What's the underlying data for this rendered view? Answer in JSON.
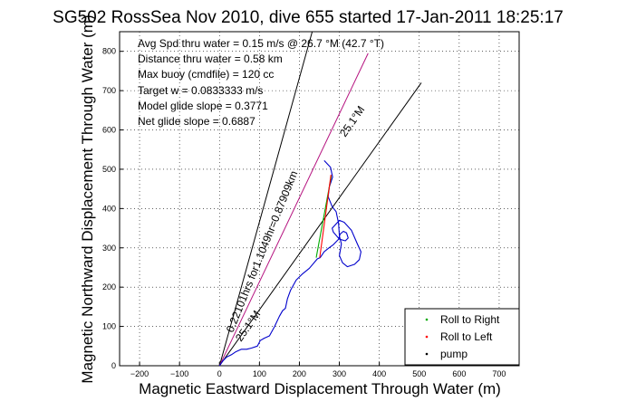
{
  "chart_data": {
    "type": "line",
    "title": "SG502 RossSea Nov 2010, dive 655 started 17-Jan-2011 18:25:17",
    "xlabel": "Magnetic Eastward Displacement Through Water (m)",
    "ylabel": "Magnetic Northward Displacement Through Water (m)",
    "xlim": [
      -250,
      750
    ],
    "ylim": [
      0,
      850
    ],
    "xticks": [
      "−200",
      "−100",
      "0",
      "100",
      "200",
      "300",
      "400",
      "500",
      "600",
      "700"
    ],
    "yticks": [
      "0",
      "100",
      "200",
      "300",
      "400",
      "500",
      "600",
      "700",
      "800"
    ],
    "grid": true,
    "annotations": [
      "Avg Spd thru water =  0.15 m/s @  26.7   °M (42.7 °T)",
      "Distance thru water =  0.58 km",
      "Max buoy (cmdfile) = 120 cc",
      "Target w = 0.0833333 m/s",
      "Model glide slope = 0.3771",
      "Net glide slope = 0.6887"
    ],
    "line_labels": {
      "bearing_lower": "25.1°M",
      "bearing_upper": "25.1°M",
      "steep_line": "0.22101hrs for1.1049hr=0.87909km"
    },
    "reference_lines": [
      {
        "color": "#000000",
        "points": [
          [
            0,
            0
          ],
          [
            505,
            720
          ]
        ]
      },
      {
        "color": "#000000",
        "points": [
          [
            0,
            0
          ],
          [
            232,
            850
          ]
        ]
      },
      {
        "color": "#b5127f",
        "points": [
          [
            0,
            0
          ],
          [
            372,
            795
          ]
        ]
      }
    ],
    "series": [
      {
        "color": "#0000cc",
        "points": [
          [
            0,
            0
          ],
          [
            8,
            12
          ],
          [
            18,
            22
          ],
          [
            30,
            28
          ],
          [
            40,
            35
          ],
          [
            55,
            42
          ],
          [
            68,
            42
          ],
          [
            80,
            45
          ],
          [
            95,
            50
          ],
          [
            102,
            64
          ],
          [
            112,
            70
          ],
          [
            125,
            76
          ],
          [
            138,
            100
          ],
          [
            150,
            126
          ],
          [
            158,
            140
          ],
          [
            165,
            146
          ],
          [
            170,
            170
          ],
          [
            178,
            192
          ],
          [
            192,
            218
          ],
          [
            208,
            234
          ],
          [
            225,
            248
          ],
          [
            245,
            272
          ],
          [
            252,
            275
          ],
          [
            262,
            290
          ],
          [
            274,
            300
          ],
          [
            285,
            308
          ],
          [
            298,
            322
          ],
          [
            302,
            335
          ],
          [
            310,
            342
          ],
          [
            318,
            338
          ],
          [
            322,
            325
          ],
          [
            315,
            318
          ],
          [
            300,
            322
          ],
          [
            285,
            340
          ],
          [
            282,
            350
          ],
          [
            300,
            370
          ],
          [
            312,
            365
          ],
          [
            330,
            345
          ],
          [
            345,
            310
          ],
          [
            354,
            290
          ],
          [
            350,
            270
          ],
          [
            338,
            258
          ],
          [
            320,
            252
          ],
          [
            308,
            262
          ],
          [
            300,
            280
          ],
          [
            305,
            310
          ],
          [
            300,
            330
          ],
          [
            298,
            362
          ],
          [
            292,
            392
          ],
          [
            282,
            405
          ],
          [
            272,
            430
          ],
          [
            275,
            455
          ],
          [
            283,
            480
          ],
          [
            278,
            505
          ],
          [
            262,
            522
          ]
        ]
      },
      {
        "color": "#00aa00",
        "points": [
          [
            242,
            275
          ],
          [
            280,
            483
          ]
        ]
      },
      {
        "color": "#ff0000",
        "points": [
          [
            251,
            275
          ],
          [
            279,
            486
          ]
        ]
      }
    ],
    "legend": {
      "position": "bottom-right",
      "items": [
        {
          "label": "Roll to Right",
          "color": "#00aa00"
        },
        {
          "label": "Roll to Left",
          "color": "#ff0000"
        },
        {
          "label": "pump",
          "color": "#000000"
        }
      ]
    }
  }
}
